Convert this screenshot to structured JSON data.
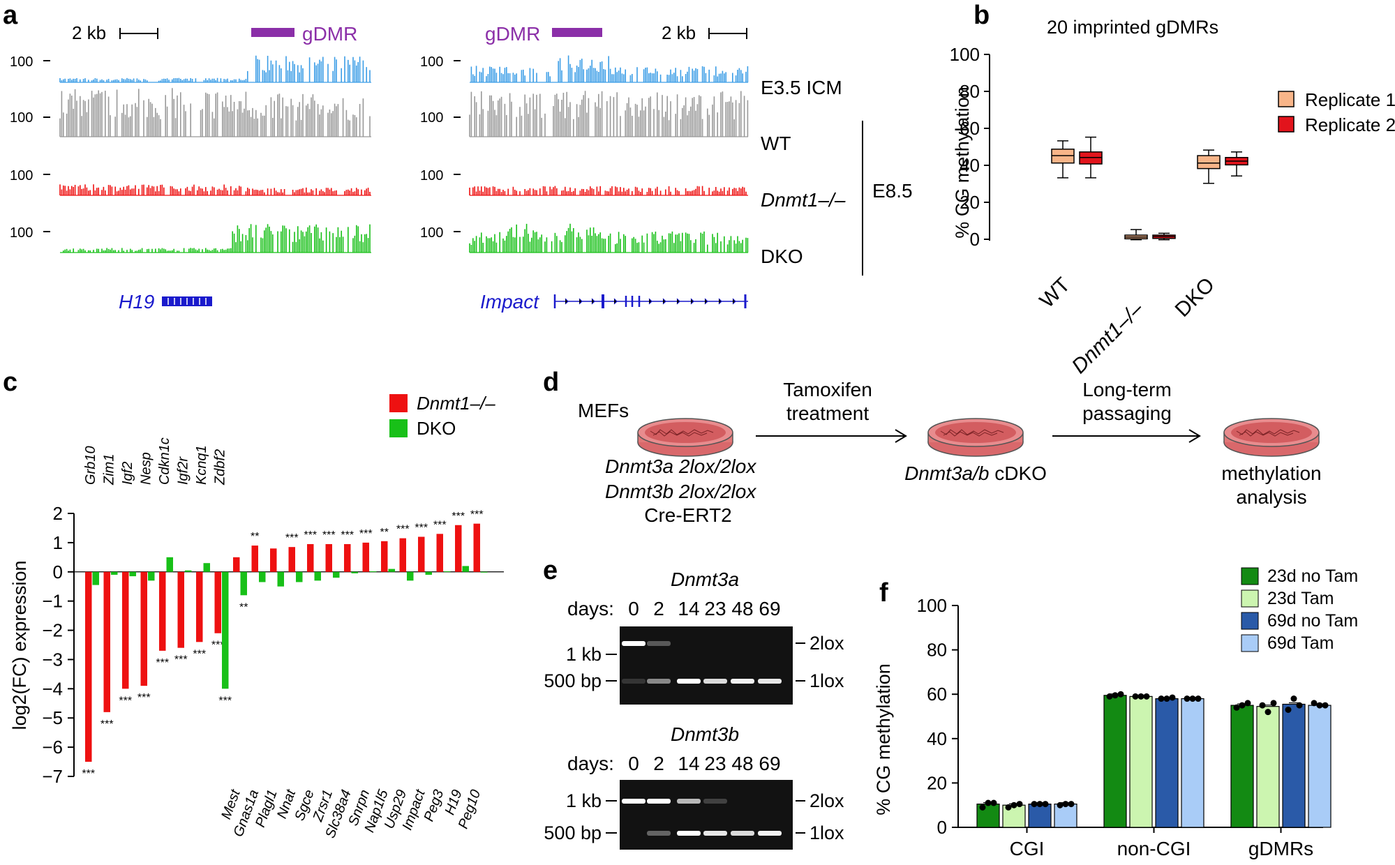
{
  "panel_labels": {
    "a": "a",
    "b": "b",
    "c": "c",
    "d": "d",
    "e": "e",
    "f": "f"
  },
  "colors": {
    "icm": "#3b9de6",
    "wt": "#999999",
    "dnmt1": "#ee1111",
    "dko": "#18c018",
    "gdmr": "#8b2fa8",
    "gene": "#1a1acc",
    "rep1": "#f8b589",
    "rep2": "#e2141c",
    "f_23no": "#138a13",
    "f_23tam": "#ccf5b0",
    "f_69no": "#2a5aa8",
    "f_69tam": "#a9ccf7"
  },
  "panel_a": {
    "scale_label": "2 kb",
    "gdmr_label": "gDMR",
    "track_max": "100",
    "tracks": [
      {
        "label": "E3.5 ICM",
        "italic": false
      },
      {
        "label": "WT",
        "italic": false
      },
      {
        "label": "Dnmt1–/–",
        "italic": true
      },
      {
        "label": "DKO",
        "italic": false
      }
    ],
    "stage_label": "E8.5",
    "gene_left": "H19",
    "gene_right": "Impact"
  },
  "panel_b": {
    "chart_data": {
      "type": "box",
      "title": "20 imprinted gDMRs",
      "ylabel": "% CG methylation",
      "ylim": [
        0,
        100
      ],
      "yticks": [
        "0",
        "20",
        "40",
        "60",
        "80",
        "100"
      ],
      "categories": [
        "WT",
        "Dnmt1–/–",
        "DKO"
      ],
      "category_italic": [
        false,
        true,
        false
      ],
      "legend": [
        "Replicate 1",
        "Replicate 2"
      ],
      "series": [
        {
          "name": "Replicate 1",
          "boxes": [
            {
              "min": 34,
              "q1": 42,
              "median": 46,
              "q3": 49.5,
              "max": 54
            },
            {
              "min": 0.5,
              "q1": 1,
              "median": 2,
              "q3": 3,
              "max": 6
            },
            {
              "min": 31,
              "q1": 39,
              "median": 42,
              "q3": 46,
              "max": 49
            }
          ]
        },
        {
          "name": "Replicate 2",
          "boxes": [
            {
              "min": 34,
              "q1": 41.5,
              "median": 45,
              "q3": 48,
              "max": 56
            },
            {
              "min": 0.5,
              "q1": 1.2,
              "median": 2.2,
              "q3": 3,
              "max": 4
            },
            {
              "min": 35,
              "q1": 41,
              "median": 43,
              "q3": 45,
              "max": 48
            }
          ]
        }
      ]
    }
  },
  "panel_c": {
    "chart_data": {
      "type": "bar",
      "ylabel": "log2(FC) expression",
      "ylim": [
        -7,
        2
      ],
      "yticks": [
        "2",
        "1",
        "0",
        "−1",
        "−2",
        "−3",
        "−4",
        "−5",
        "−6",
        "−7"
      ],
      "legend": [
        "Dnmt1–/–",
        "DKO"
      ],
      "categories": [
        "Grb10",
        "Zim1",
        "Igf2",
        "Nesp",
        "Cdkn1c",
        "Igf2r",
        "Kcnq1",
        "Zdbf2",
        "Mest",
        "Gnas1a",
        "Plagl1",
        "Nnat",
        "Sgce",
        "Zrsr1",
        "Slc38a4",
        "Snrpn",
        "Nap1l5",
        "Usp29",
        "Impact",
        "Peg3",
        "H19",
        "Peg10"
      ],
      "series": [
        {
          "name": "Dnmt1–/–",
          "values": [
            -6.5,
            -4.8,
            -4.0,
            -3.9,
            -2.7,
            -2.6,
            -2.4,
            -2.1,
            0.5,
            0.9,
            0.8,
            0.85,
            0.95,
            0.95,
            0.95,
            1.0,
            1.05,
            1.15,
            1.2,
            1.3,
            1.6,
            1.65
          ],
          "significance": [
            "***",
            "***",
            "***",
            "***",
            "***",
            "***",
            "***",
            "***",
            "",
            "**",
            "",
            "***",
            "***",
            "***",
            "***",
            "***",
            "**",
            "***",
            "***",
            "***",
            "***",
            "***"
          ]
        },
        {
          "name": "DKO",
          "values": [
            -0.45,
            -0.1,
            -0.15,
            -0.3,
            0.5,
            0.05,
            0.3,
            -4.0,
            -0.8,
            -0.35,
            -0.5,
            -0.35,
            -0.3,
            -0.2,
            -0.05,
            0.02,
            0.1,
            -0.3,
            -0.1,
            0.02,
            0.2,
            -0.02
          ],
          "significance": [
            "",
            "",
            "",
            "",
            "",
            "",
            "",
            "***",
            "**",
            "",
            "",
            "",
            "",
            "",
            "",
            "",
            "",
            "",
            "",
            "",
            "",
            ""
          ]
        }
      ]
    }
  },
  "panel_d": {
    "mefs": "MEFs",
    "genotype_line1": "Dnmt3a 2lox/2lox",
    "genotype_line2": "Dnmt3b 2lox/2lox",
    "genotype_line3": "Cre-ERT2",
    "step1_line1": "Tamoxifen",
    "step1_line2": "treatment",
    "cdko_gene": "Dnmt3a/b",
    "cdko_suffix": " cDKO",
    "step2_line1": "Long-term",
    "step2_line2": "passaging",
    "result_line1": "methylation",
    "result_line2": "analysis"
  },
  "panel_e": {
    "gels": [
      {
        "title": "Dnmt3a",
        "days_label": "days:",
        "days": [
          "0",
          "2",
          "14",
          "23",
          "48",
          "69"
        ],
        "ladder": [
          "1 kb",
          "500 bp"
        ],
        "bands": [
          "2lox",
          "1lox"
        ]
      },
      {
        "title": "Dnmt3b",
        "days_label": "days:",
        "days": [
          "0",
          "2",
          "14",
          "23",
          "48",
          "69"
        ],
        "ladder": [
          "1 kb",
          "500 bp"
        ],
        "bands": [
          "2lox",
          "1lox"
        ]
      }
    ]
  },
  "panel_f": {
    "chart_data": {
      "type": "bar",
      "ylabel": "% CG methylation",
      "ylim": [
        0,
        100
      ],
      "yticks": [
        "0",
        "20",
        "40",
        "60",
        "80",
        "100"
      ],
      "categories": [
        "CGI",
        "non-CGI",
        "gDMRs"
      ],
      "series": [
        {
          "name": "23d no Tam",
          "values": [
            10.5,
            59.5,
            55
          ],
          "points": [
            [
              9,
              11,
              11
            ],
            [
              59,
              59.5,
              60
            ],
            [
              54,
              55,
              56
            ]
          ]
        },
        {
          "name": "23d Tam",
          "values": [
            10,
            59,
            54.5
          ],
          "points": [
            [
              9,
              10,
              10.5
            ],
            [
              59,
              59,
              59
            ],
            [
              55,
              52,
              56
            ]
          ]
        },
        {
          "name": "69d no Tam",
          "values": [
            10.5,
            58,
            55.5
          ],
          "points": [
            [
              10.5,
              10.5,
              10.5
            ],
            [
              58,
              58,
              58.5
            ],
            [
              53,
              58,
              55
            ]
          ]
        },
        {
          "name": "69d Tam",
          "values": [
            10.5,
            58,
            55
          ],
          "points": [
            [
              10,
              10.5,
              10.5
            ],
            [
              58,
              58,
              58
            ],
            [
              56,
              55,
              55
            ]
          ]
        }
      ]
    }
  }
}
